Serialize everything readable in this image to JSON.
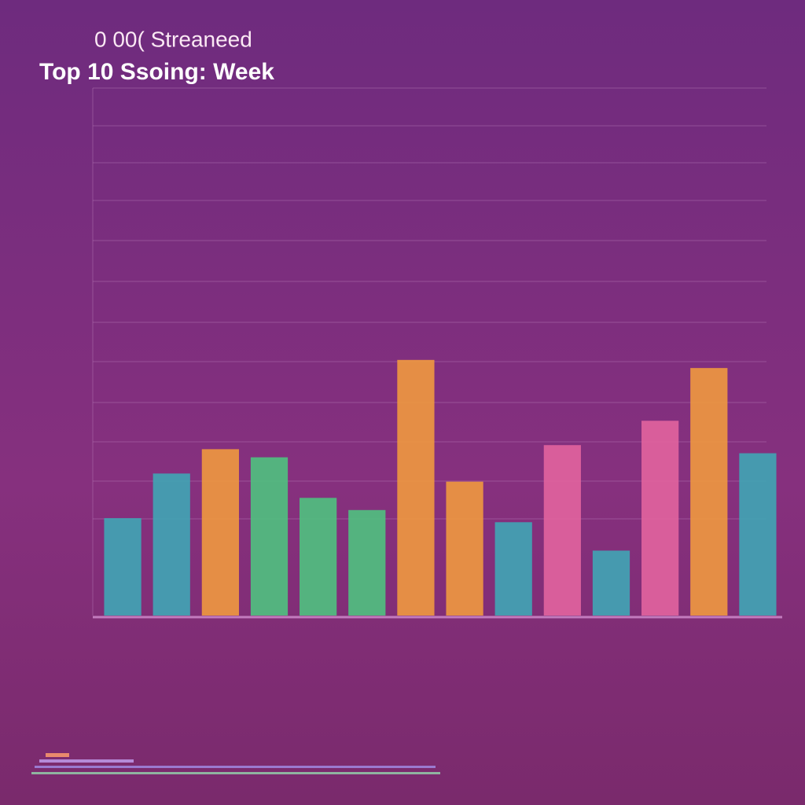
{
  "chart_data": {
    "type": "bar",
    "title": "Top 10 Ssoing: Week",
    "subtitle": "0 00( Streaneed",
    "categories": [
      null,
      null,
      null,
      null,
      null,
      null,
      null,
      null,
      null,
      null,
      null,
      null,
      null,
      null
    ],
    "values": [
      2.4,
      3.5,
      4.1,
      3.9,
      2.9,
      2.6,
      6.3,
      3.3,
      2.3,
      4.2,
      1.6,
      4.8,
      6.1,
      4.0
    ],
    "colors": [
      "#3fa6b5",
      "#3fa6b5",
      "#f0993f",
      "#4fc27f",
      "#4fc27f",
      "#4fc27f",
      "#f0993f",
      "#f0993f",
      "#3fa6b5",
      "#e2649e",
      "#3fa6b5",
      "#e2649e",
      "#f0993f",
      "#3fa6b5"
    ],
    "ylim": [
      0,
      13
    ]
  }
}
